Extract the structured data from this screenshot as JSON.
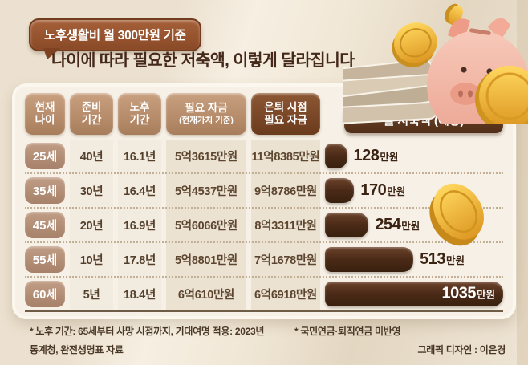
{
  "page": {
    "badge_label": "노후생활비 월 300만원 기준",
    "title_emphasis": "나이에 따라 필요한 저축액",
    "title_rest": ", 이렇게 달라집니다"
  },
  "table": {
    "headers": {
      "age_l1": "현재",
      "age_l2": "나이",
      "prep_l1": "준비",
      "prep_l2": "기간",
      "retire_l1": "노후",
      "retire_l2": "기간",
      "fund_l1": "필요 자금",
      "fund_l2": "(현재가치 기준)",
      "fund_at_l1": "은퇴 시점",
      "fund_at_l2": "필요 자금",
      "monthly": "월 저축액 (예상)",
      "monthly_arrow": "›"
    },
    "rows": [
      {
        "age": "25세",
        "prep": "40년",
        "retire": "16.1년",
        "fund_now": "5억3615만원",
        "fund_retire": "11억8385만원",
        "monthly_num": "128",
        "monthly_unit": "만원",
        "bar_pct": 12.4
      },
      {
        "age": "35세",
        "prep": "30년",
        "retire": "16.4년",
        "fund_now": "5억4537만원",
        "fund_retire": "9억8786만원",
        "monthly_num": "170",
        "monthly_unit": "만원",
        "bar_pct": 16.4
      },
      {
        "age": "45세",
        "prep": "20년",
        "retire": "16.9년",
        "fund_now": "5억6066만원",
        "fund_retire": "8억3311만원",
        "monthly_num": "254",
        "monthly_unit": "만원",
        "bar_pct": 24.5
      },
      {
        "age": "55세",
        "prep": "10년",
        "retire": "17.8년",
        "fund_now": "5억8801만원",
        "fund_retire": "7억1678만원",
        "monthly_num": "513",
        "monthly_unit": "만원",
        "bar_pct": 49.6
      },
      {
        "age": "60세",
        "prep": "5년",
        "retire": "18.4년",
        "fund_now": "6억610만원",
        "fund_retire": "6억6918만원",
        "monthly_num": "1035",
        "monthly_unit": "만원",
        "bar_pct": 100
      }
    ]
  },
  "footnotes": {
    "note1": "* 노후 기간: 65세부터 사망 시점까지, 기대여명 적용: 2023년",
    "note1_cont": "통계청, 완전생명표 자료",
    "note2": "* 국민연금·퇴직연금 미반영",
    "credit": "그래픽 디자인 : 이은경"
  },
  "colors": {
    "badge_brown": "#94502c",
    "header_tab_light": "#bb9070",
    "header_tab_dark": "#7c4a2a",
    "monthly_header_brown": "#5c3721",
    "age_pill": "#b28f77",
    "bar_dark_brown": "#49291a",
    "coin_gold": "#f0ae3e",
    "pig_pink": "#f3b9a9",
    "card_bg": "#f6f0e6",
    "page_bg": "#eadfcf"
  },
  "chart_data": {
    "type": "bar",
    "orientation": "horizontal",
    "title": "월 저축액 (예상)",
    "categories": [
      "25세",
      "35세",
      "45세",
      "55세",
      "60세"
    ],
    "values": [
      128,
      170,
      254,
      513,
      1035
    ],
    "unit": "만원",
    "xlim": [
      0,
      1035
    ],
    "grid": false,
    "legend": false,
    "context_table": {
      "columns": [
        "현재 나이",
        "준비 기간",
        "노후 기간",
        "필요 자금 (현재가치 기준)",
        "은퇴 시점 필요 자금",
        "월 저축액 (예상)"
      ],
      "rows": [
        [
          "25세",
          "40년",
          "16.1년",
          "5억3615만원",
          "11억8385만원",
          "128만원"
        ],
        [
          "35세",
          "30년",
          "16.4년",
          "5억4537만원",
          "9억8786만원",
          "170만원"
        ],
        [
          "45세",
          "20년",
          "16.9년",
          "5억6066만원",
          "8억3311만원",
          "254만원"
        ],
        [
          "55세",
          "10년",
          "17.8년",
          "5억8801만원",
          "7억1678만원",
          "513만원"
        ],
        [
          "60세",
          "5년",
          "18.4년",
          "6억610만원",
          "6억6918만원",
          "1035만원"
        ]
      ]
    }
  }
}
